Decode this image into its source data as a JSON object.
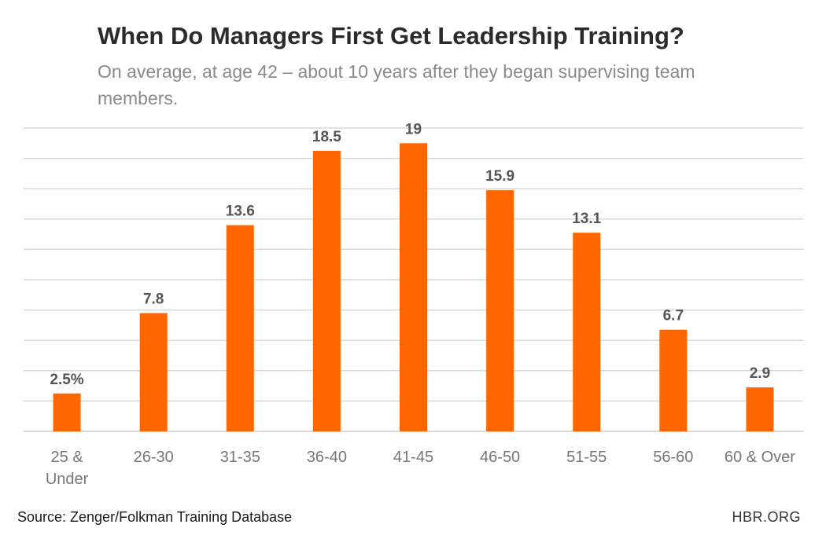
{
  "header": {
    "title": "When Do Managers First Get Leadership Training?",
    "subtitle": "On average, at age 42 – about 10 years after they began supervising team members."
  },
  "footer": {
    "source": "Source: Zenger/Folkman Training Database",
    "brand": "HBR.ORG"
  },
  "colors": {
    "bar": "#ff6600",
    "grid": "#d9d9d9",
    "value_label": "#555555",
    "tick_label": "#777777"
  },
  "chart_data": {
    "type": "bar",
    "categories": [
      "25 & Under",
      "26-30",
      "31-35",
      "36-40",
      "41-45",
      "46-50",
      "51-55",
      "56-60",
      "60 & Over"
    ],
    "category_lines": [
      [
        "25 &",
        "Under"
      ],
      [
        "26-30"
      ],
      [
        "31-35"
      ],
      [
        "36-40"
      ],
      [
        "41-45"
      ],
      [
        "46-50"
      ],
      [
        "51-55"
      ],
      [
        "56-60"
      ],
      [
        "60 & Over"
      ]
    ],
    "values": [
      2.5,
      7.8,
      13.6,
      18.5,
      19,
      15.9,
      13.1,
      6.7,
      2.9
    ],
    "data_labels": [
      "2.5%",
      "7.8",
      "13.6",
      "18.5",
      "19",
      "15.9",
      "13.1",
      "6.7",
      "2.9"
    ],
    "ylim": [
      0,
      20
    ],
    "grid": true,
    "xlabel": "",
    "ylabel": ""
  }
}
